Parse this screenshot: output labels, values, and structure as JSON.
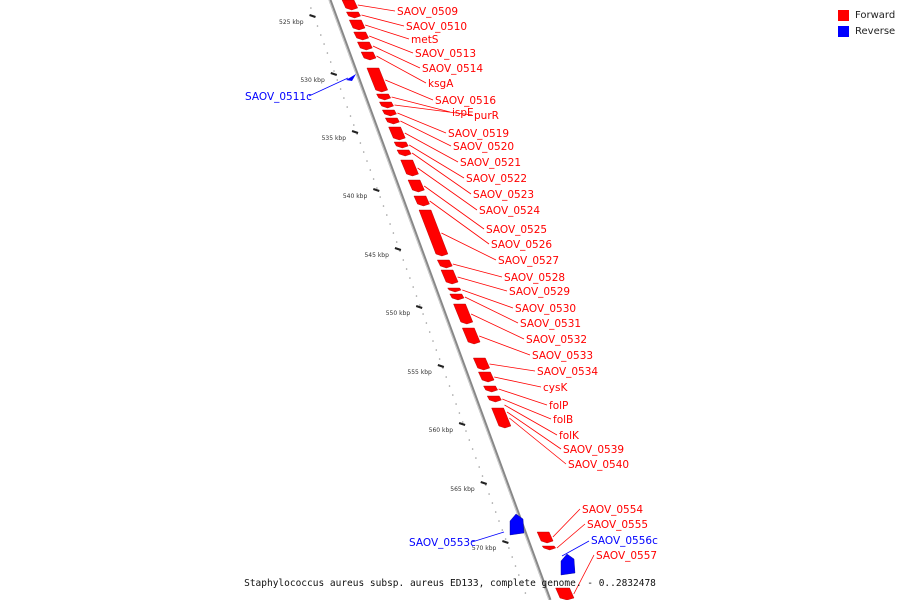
{
  "legend": {
    "items": [
      {
        "label": "Forward",
        "color": "#ff0000"
      },
      {
        "label": "Reverse",
        "color": "#0000ff"
      }
    ]
  },
  "colors": {
    "forward": "#ff0000",
    "reverse": "#0000ff",
    "backbone": "#888888"
  },
  "footer_text": "Staphylococcus aureus subsp. aureus ED133, complete genome. - 0..2832478",
  "ticks": [
    "525 kbp",
    "530 kbp",
    "535 kbp",
    "540 kbp",
    "545 kbp",
    "550 kbp",
    "555 kbp",
    "560 kbp",
    "565 kbp",
    "570 kbp"
  ],
  "forward_genes": [
    "SAOV_0509",
    "SAOV_0510",
    "metS",
    "SAOV_0513",
    "SAOV_0514",
    "ksgA",
    "SAOV_0516",
    "ispE",
    "purR",
    "SAOV_0519",
    "SAOV_0520",
    "SAOV_0521",
    "SAOV_0522",
    "SAOV_0523",
    "SAOV_0524",
    "SAOV_0525",
    "SAOV_0526",
    "SAOV_0527",
    "SAOV_0528",
    "SAOV_0529",
    "SAOV_0530",
    "SAOV_0531",
    "SAOV_0532",
    "SAOV_0533",
    "SAOV_0534",
    "cysK",
    "folP",
    "folB",
    "folK",
    "SAOV_0539",
    "SAOV_0540",
    "SAOV_0554",
    "SAOV_0555",
    "SAOV_0557"
  ],
  "reverse_genes": [
    "SAOV_0511c",
    "SAOV_0553c",
    "SAOV_0556c"
  ]
}
